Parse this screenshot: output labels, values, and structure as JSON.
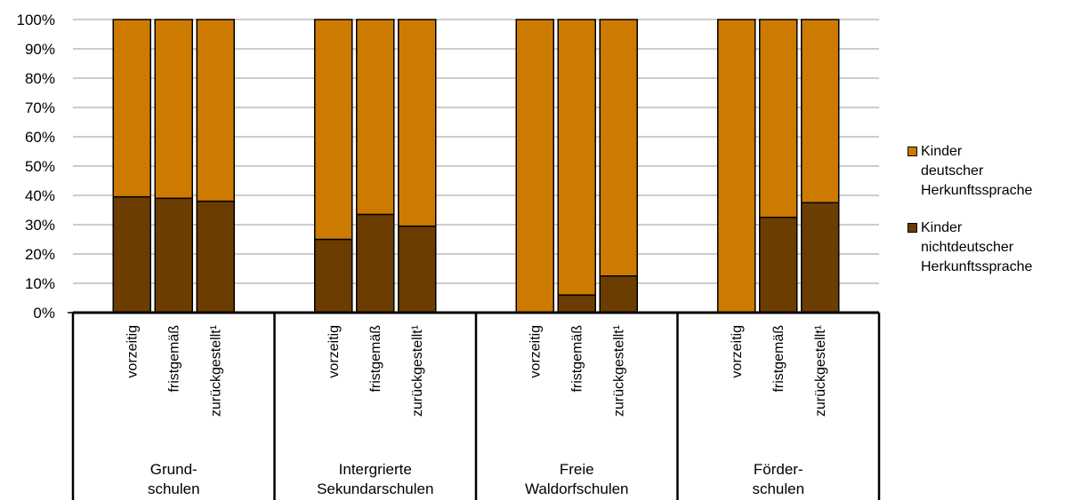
{
  "chart_data": {
    "type": "bar",
    "stacked": true,
    "percent_stacked": true,
    "ylim": [
      0,
      100
    ],
    "yticks": [
      "0%",
      "10%",
      "20%",
      "30%",
      "40%",
      "50%",
      "60%",
      "70%",
      "80%",
      "90%",
      "100%"
    ],
    "grid": true,
    "legend_position": "right",
    "groups": [
      {
        "label_lines": [
          "Grund-",
          "schulen"
        ],
        "categories": [
          "vorzeitig",
          "fristgemäß",
          "zurückgestellt¹"
        ]
      },
      {
        "label_lines": [
          "Intergrierte",
          "Sekundarschulen"
        ],
        "categories": [
          "vorzeitig",
          "fristgemäß",
          "zurückgestellt¹"
        ]
      },
      {
        "label_lines": [
          "Freie",
          "Waldorfschulen"
        ],
        "categories": [
          "vorzeitig",
          "fristgemäß",
          "zurückgestellt¹"
        ]
      },
      {
        "label_lines": [
          "Förder-",
          "schulen"
        ],
        "categories": [
          "vorzeitig",
          "fristgemäß",
          "zurückgestellt¹"
        ]
      }
    ],
    "series": [
      {
        "name_lines": [
          "Kinder",
          "nichtdeutscher",
          "Herkunftssprache"
        ],
        "color": "#6b3d00",
        "values": [
          39.5,
          39,
          38,
          25,
          33.5,
          29.5,
          0,
          6,
          12.5,
          0,
          32.5,
          37.5
        ]
      },
      {
        "name_lines": [
          "Kinder",
          "deutscher",
          "Herkunftssprache"
        ],
        "color": "#cc7a00",
        "values": [
          60.5,
          61,
          62,
          75,
          66.5,
          70.5,
          100,
          94,
          87.5,
          100,
          67.5,
          62.5
        ]
      }
    ]
  }
}
